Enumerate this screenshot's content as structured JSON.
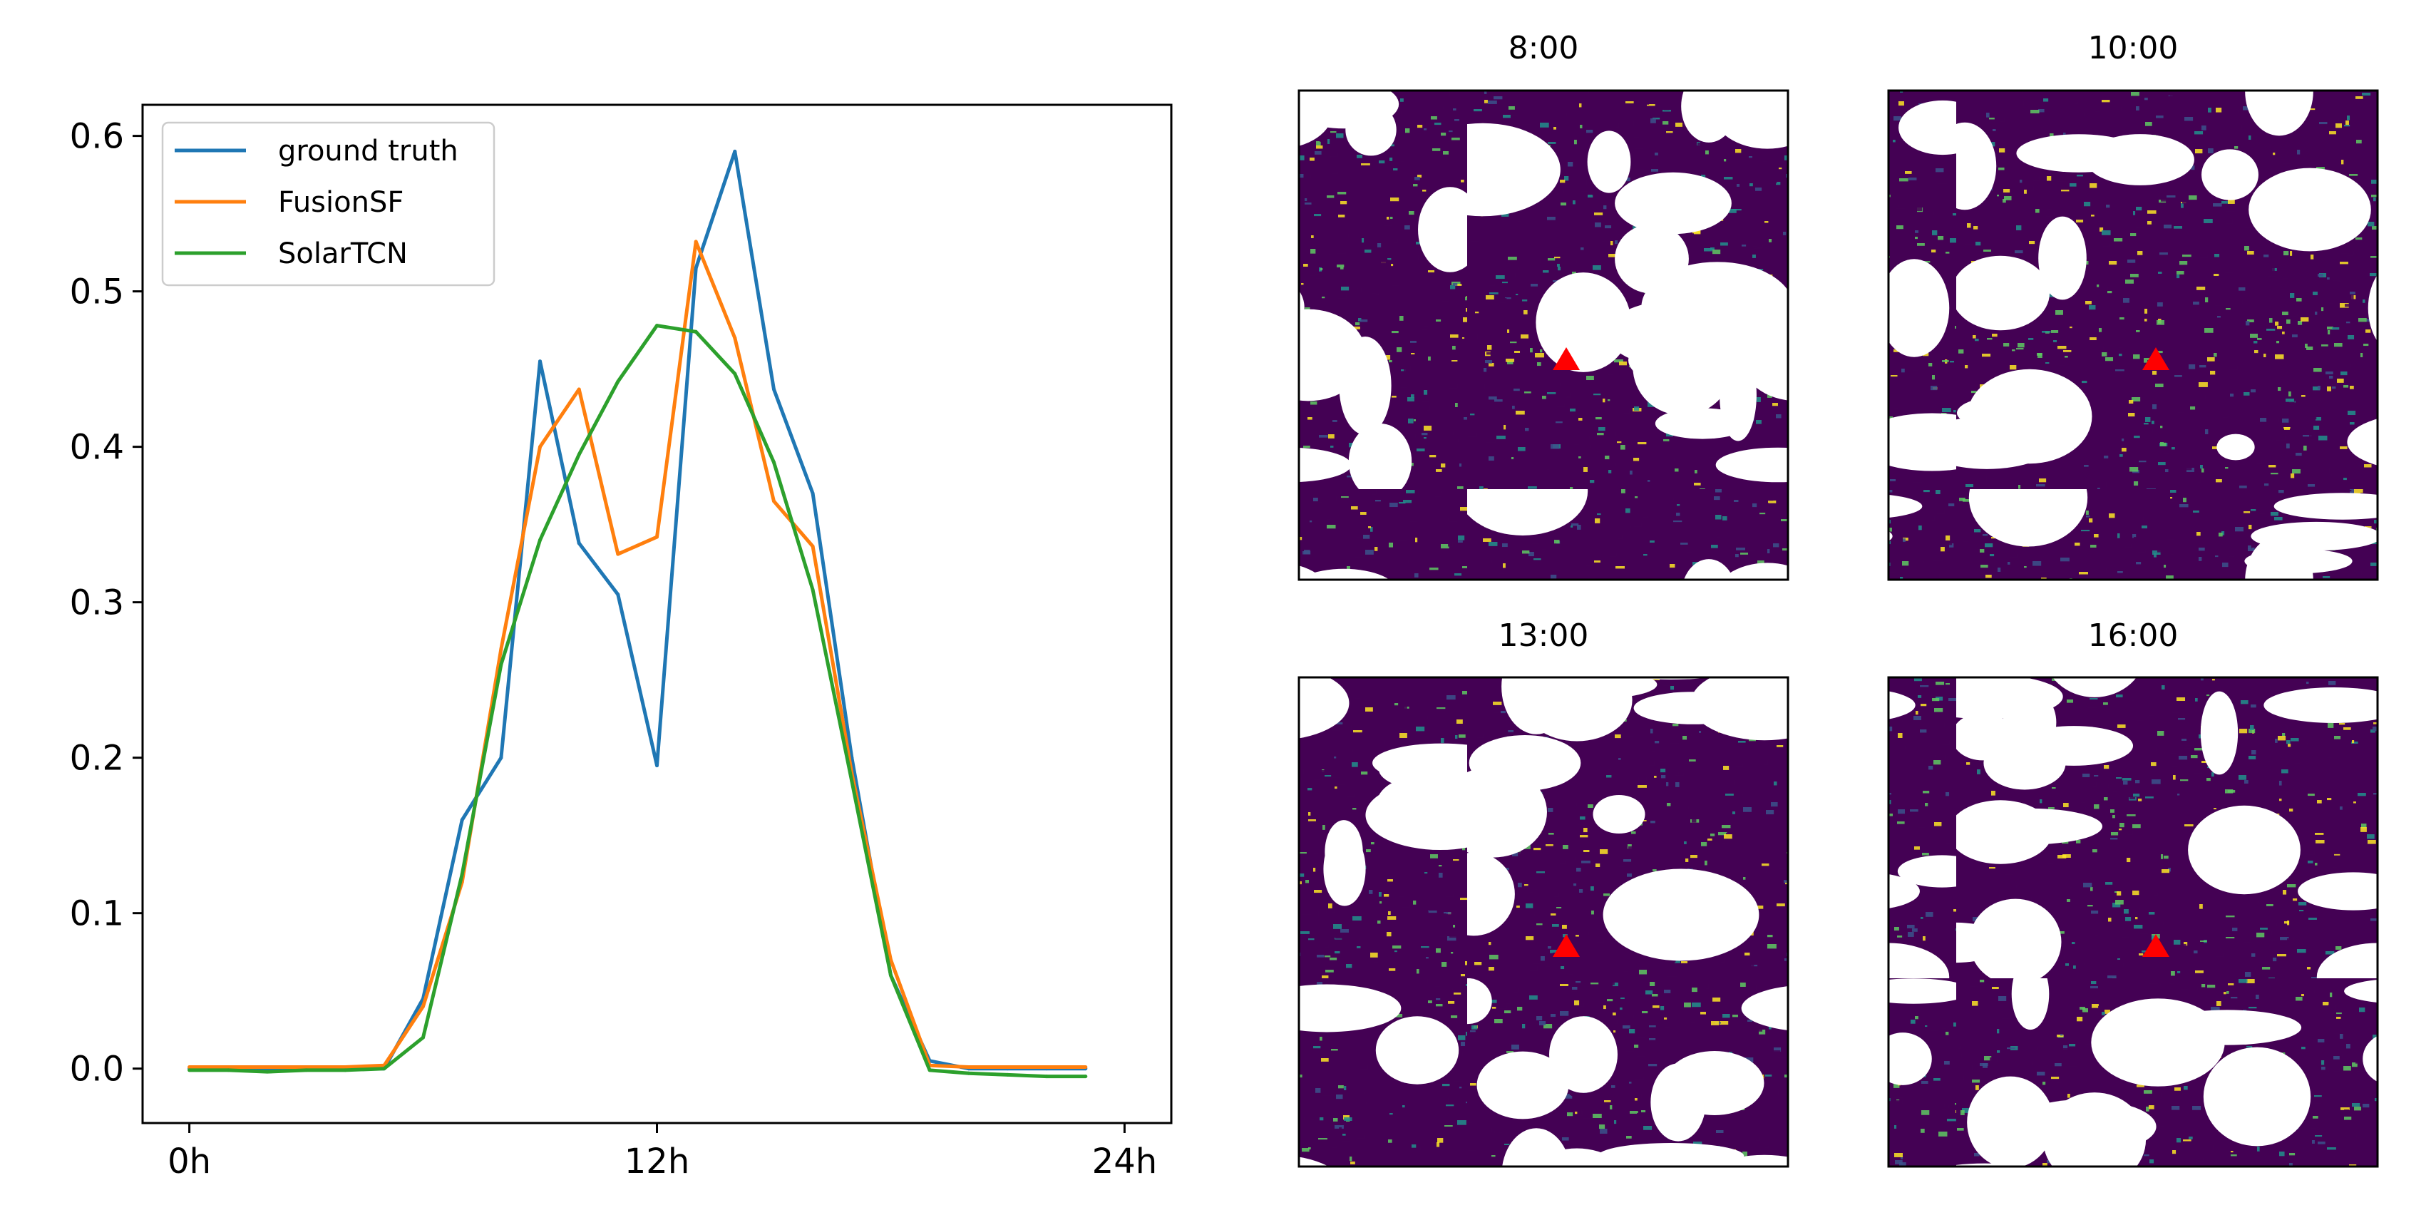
{
  "colors": {
    "ground_truth": "#1f77b4",
    "fusionsf": "#ff7f0e",
    "solartcn": "#2ca02c",
    "site_marker": "#ff0000",
    "cloud_dark": "#440154",
    "cloud_mid": "#3b528b",
    "cloud_teal": "#21918c",
    "cloud_green": "#5ec962",
    "cloud_yellow": "#fde725"
  },
  "chart_data": [
    {
      "type": "line",
      "title": "",
      "xlabel": "",
      "ylabel": "",
      "xlim": [
        -1.2,
        25.2
      ],
      "ylim": [
        -0.035,
        0.62
      ],
      "xticks": [
        {
          "value": 0,
          "label": "0h"
        },
        {
          "value": 12,
          "label": "12h"
        },
        {
          "value": 24,
          "label": "24h"
        }
      ],
      "yticks": [
        {
          "value": 0.0,
          "label": "0.0"
        },
        {
          "value": 0.1,
          "label": "0.1"
        },
        {
          "value": 0.2,
          "label": "0.2"
        },
        {
          "value": 0.3,
          "label": "0.3"
        },
        {
          "value": 0.4,
          "label": "0.4"
        },
        {
          "value": 0.5,
          "label": "0.5"
        },
        {
          "value": 0.6,
          "label": "0.6"
        }
      ],
      "grid": false,
      "legend_position": "top-left",
      "x": [
        0,
        1,
        2,
        3,
        4,
        5,
        6,
        7,
        8,
        9,
        10,
        11,
        12,
        13,
        14,
        15,
        16,
        17,
        18,
        19,
        20,
        21,
        22,
        23
      ],
      "series": [
        {
          "name": "ground truth",
          "color": "#1f77b4",
          "values": [
            0.0,
            0.0,
            0.0,
            0.0,
            0.0,
            0.0,
            0.045,
            0.16,
            0.2,
            0.455,
            0.338,
            0.305,
            0.195,
            0.515,
            0.59,
            0.437,
            0.37,
            0.2,
            0.06,
            0.005,
            0.0,
            0.0,
            0.0,
            0.0
          ]
        },
        {
          "name": "FusionSF",
          "color": "#ff7f0e",
          "values": [
            0.001,
            0.001,
            0.001,
            0.001,
            0.001,
            0.002,
            0.04,
            0.12,
            0.27,
            0.4,
            0.437,
            0.331,
            0.342,
            0.532,
            0.47,
            0.365,
            0.336,
            0.19,
            0.07,
            0.002,
            0.001,
            0.001,
            0.001,
            0.001
          ]
        },
        {
          "name": "SolarTCN",
          "color": "#2ca02c",
          "values": [
            -0.001,
            -0.001,
            -0.002,
            -0.001,
            -0.001,
            0.0,
            0.02,
            0.125,
            0.26,
            0.34,
            0.395,
            0.442,
            0.478,
            0.474,
            0.447,
            0.39,
            0.308,
            0.185,
            0.06,
            -0.001,
            -0.003,
            -0.004,
            -0.005,
            -0.005
          ]
        }
      ]
    },
    {
      "type": "heatmap",
      "title": "8:00",
      "panel": "satellite-8",
      "marker": "site-triangle"
    },
    {
      "type": "heatmap",
      "title": "10:00",
      "panel": "satellite-10",
      "marker": "site-triangle"
    },
    {
      "type": "heatmap",
      "title": "13:00",
      "panel": "satellite-13",
      "marker": "site-triangle"
    },
    {
      "type": "heatmap",
      "title": "16:00",
      "panel": "satellite-16",
      "marker": "site-triangle"
    }
  ]
}
